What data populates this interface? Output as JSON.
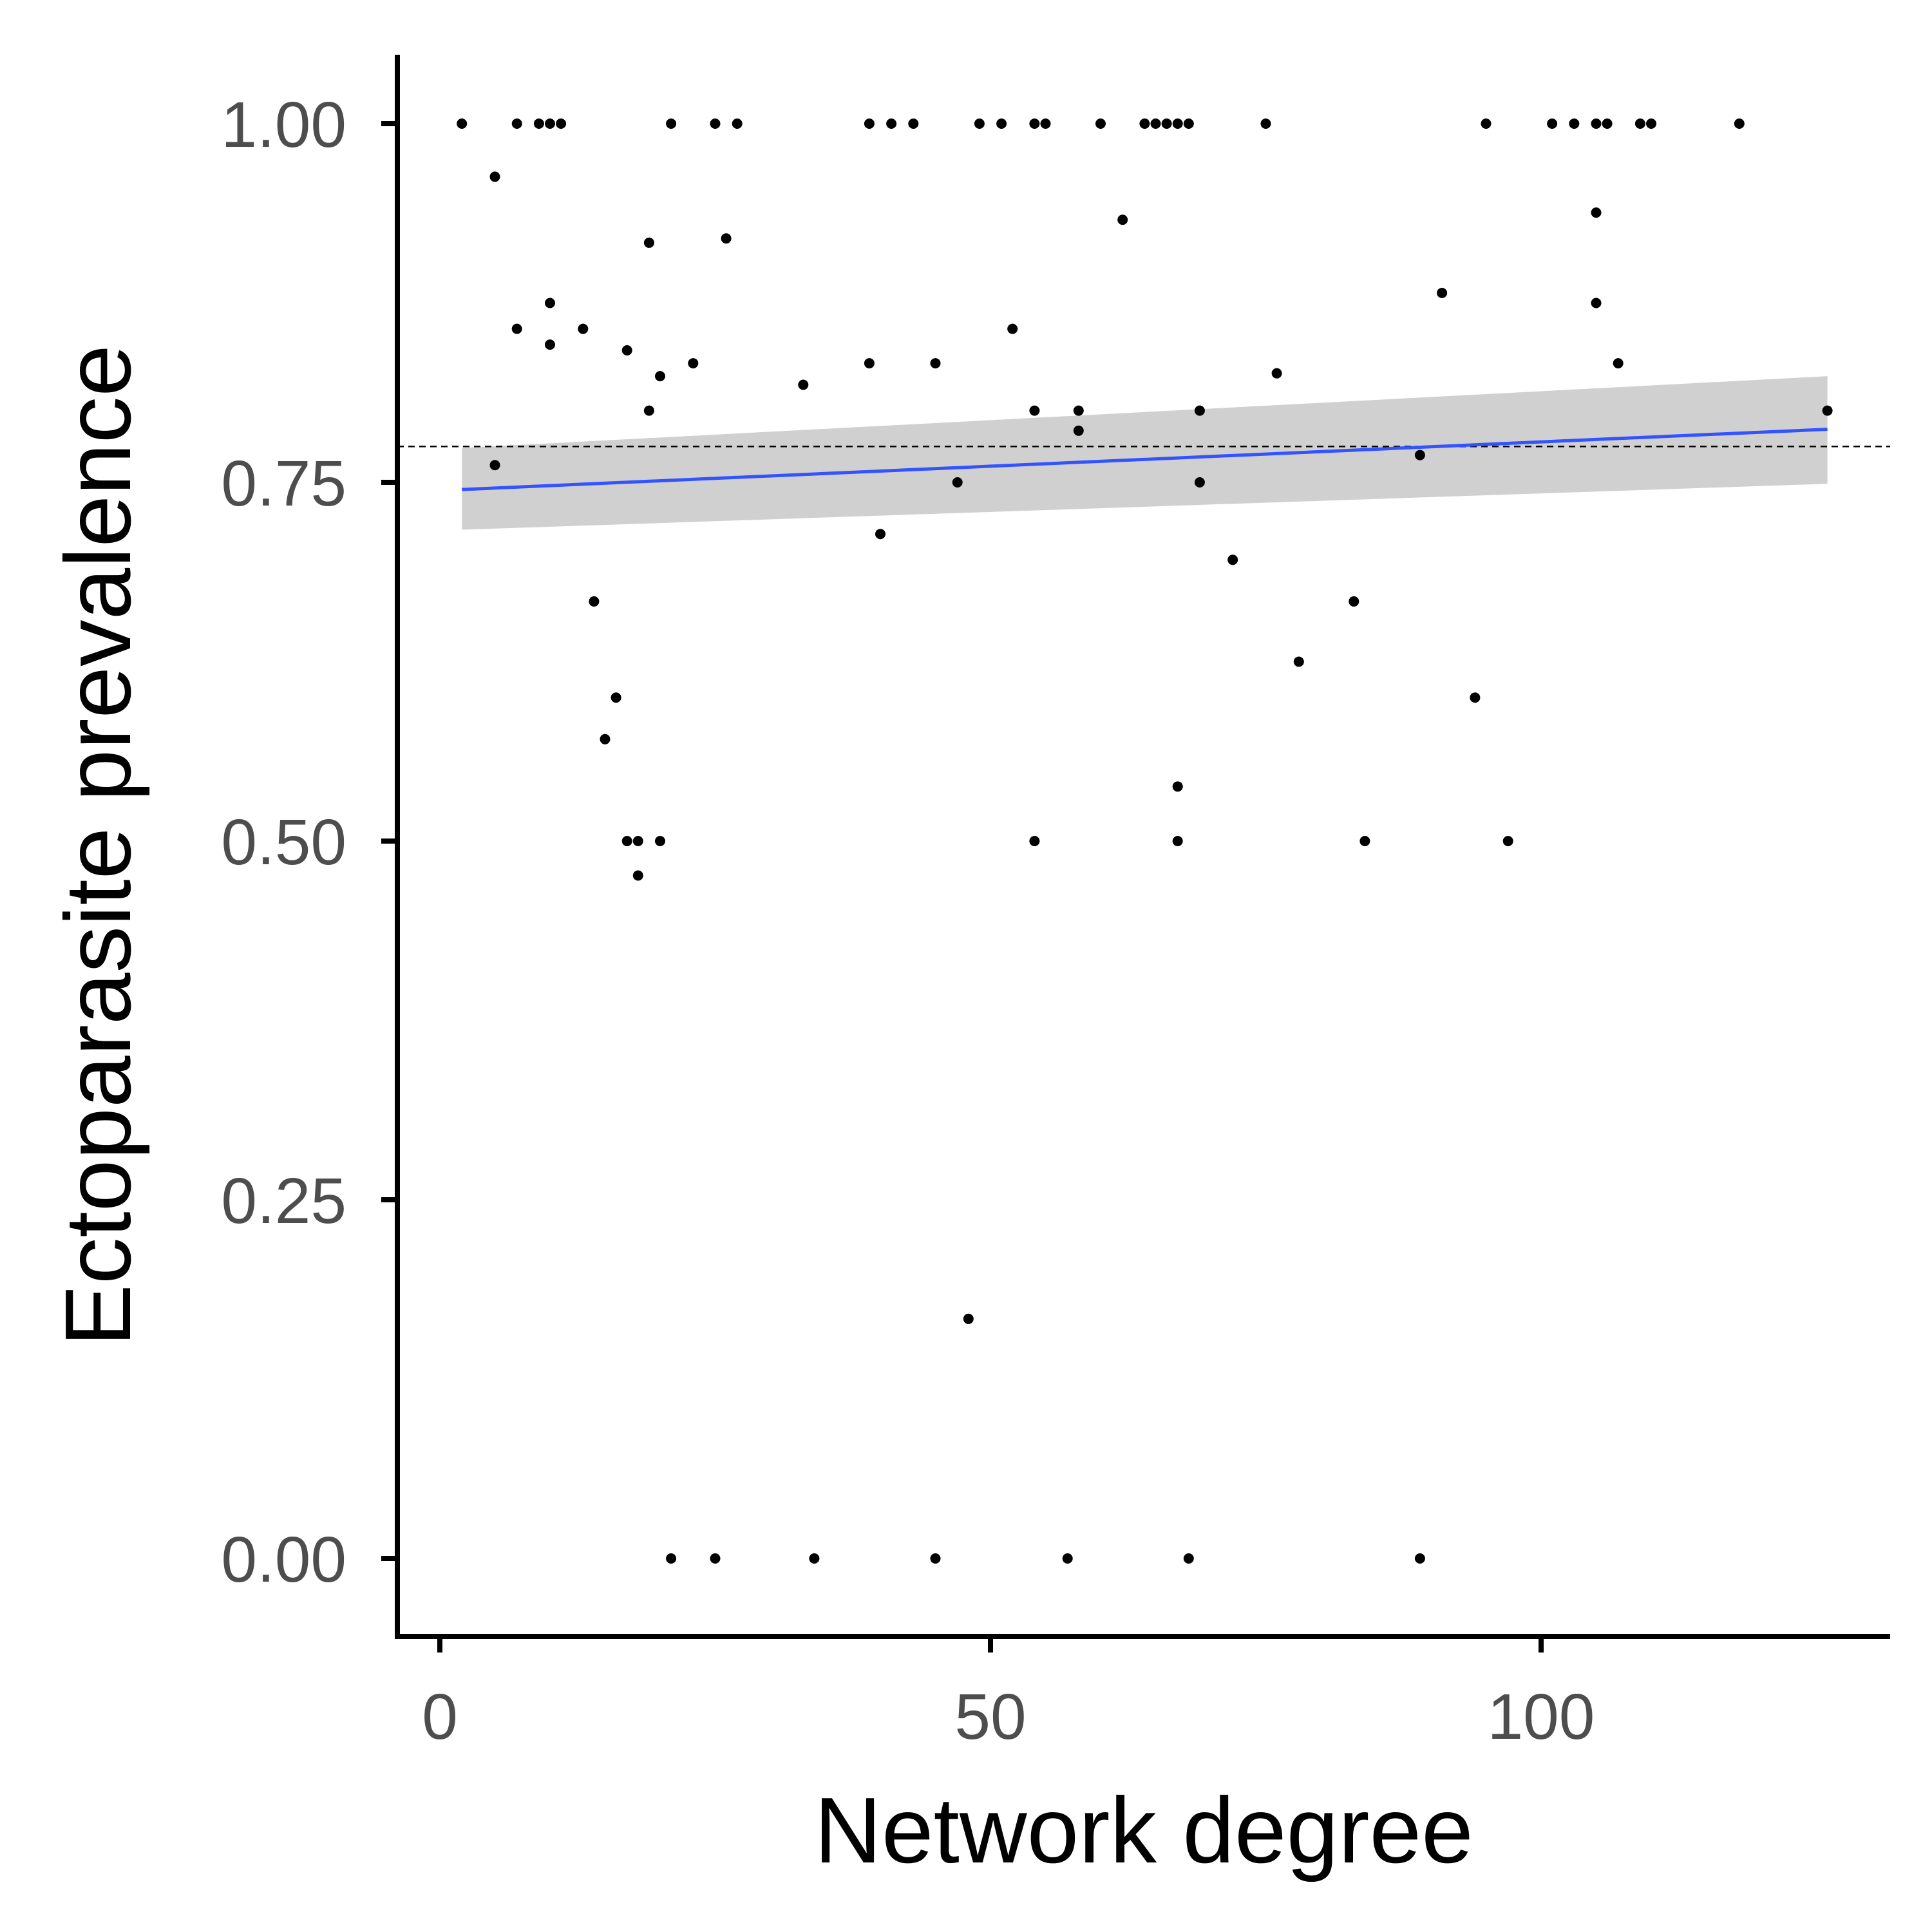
{
  "chart_data": {
    "type": "scatter",
    "title": "",
    "xlabel": "Network degree",
    "ylabel": "Ectoparasite prevalence",
    "xlim": [
      -4,
      132
    ],
    "ylim": [
      -0.05,
      1.05
    ],
    "x_ticks": [
      0,
      50,
      100
    ],
    "x_tick_labels": [
      "0",
      "50",
      "100"
    ],
    "y_ticks": [
      0,
      0.25,
      0.5,
      0.75,
      1.0
    ],
    "y_tick_labels": [
      "0.00",
      "0.25",
      "0.50",
      "0.75",
      "1.00"
    ],
    "grid": false,
    "legend": "none",
    "reference_line": {
      "y": 0.775,
      "style": "dashed"
    },
    "trend": {
      "method": "linear fit with confidence band",
      "x": [
        2,
        126
      ],
      "y": [
        0.745,
        0.787
      ],
      "ci_lower": [
        0.717,
        0.749
      ],
      "ci_upper": [
        0.774,
        0.824
      ]
    },
    "points": [
      {
        "x": 2,
        "y": 1.0
      },
      {
        "x": 7,
        "y": 1.0
      },
      {
        "x": 9,
        "y": 1.0
      },
      {
        "x": 10,
        "y": 1.0
      },
      {
        "x": 11,
        "y": 1.0
      },
      {
        "x": 21,
        "y": 1.0
      },
      {
        "x": 25,
        "y": 1.0
      },
      {
        "x": 27,
        "y": 1.0
      },
      {
        "x": 39,
        "y": 1.0
      },
      {
        "x": 41,
        "y": 1.0
      },
      {
        "x": 43,
        "y": 1.0
      },
      {
        "x": 49,
        "y": 1.0
      },
      {
        "x": 51,
        "y": 1.0
      },
      {
        "x": 54,
        "y": 1.0
      },
      {
        "x": 55,
        "y": 1.0
      },
      {
        "x": 60,
        "y": 1.0
      },
      {
        "x": 64,
        "y": 1.0
      },
      {
        "x": 65,
        "y": 1.0
      },
      {
        "x": 66,
        "y": 1.0
      },
      {
        "x": 67,
        "y": 1.0
      },
      {
        "x": 68,
        "y": 1.0
      },
      {
        "x": 75,
        "y": 1.0
      },
      {
        "x": 95,
        "y": 1.0
      },
      {
        "x": 101,
        "y": 1.0
      },
      {
        "x": 103,
        "y": 1.0
      },
      {
        "x": 105,
        "y": 1.0
      },
      {
        "x": 106,
        "y": 1.0
      },
      {
        "x": 109,
        "y": 1.0
      },
      {
        "x": 110,
        "y": 1.0
      },
      {
        "x": 118,
        "y": 1.0
      },
      {
        "x": 5,
        "y": 0.963
      },
      {
        "x": 62,
        "y": 0.933
      },
      {
        "x": 105,
        "y": 0.938
      },
      {
        "x": 19,
        "y": 0.917
      },
      {
        "x": 26,
        "y": 0.92
      },
      {
        "x": 91,
        "y": 0.882
      },
      {
        "x": 10,
        "y": 0.875
      },
      {
        "x": 105,
        "y": 0.875
      },
      {
        "x": 7,
        "y": 0.857
      },
      {
        "x": 13,
        "y": 0.857
      },
      {
        "x": 52,
        "y": 0.857
      },
      {
        "x": 10,
        "y": 0.846
      },
      {
        "x": 17,
        "y": 0.842
      },
      {
        "x": 23,
        "y": 0.833
      },
      {
        "x": 39,
        "y": 0.833
      },
      {
        "x": 45,
        "y": 0.833
      },
      {
        "x": 107,
        "y": 0.833
      },
      {
        "x": 20,
        "y": 0.824
      },
      {
        "x": 76,
        "y": 0.826
      },
      {
        "x": 33,
        "y": 0.818
      },
      {
        "x": 19,
        "y": 0.8
      },
      {
        "x": 54,
        "y": 0.8
      },
      {
        "x": 58,
        "y": 0.8
      },
      {
        "x": 69,
        "y": 0.8
      },
      {
        "x": 126,
        "y": 0.8
      },
      {
        "x": 58,
        "y": 0.786
      },
      {
        "x": 89,
        "y": 0.769
      },
      {
        "x": 5,
        "y": 0.762
      },
      {
        "x": 47,
        "y": 0.75
      },
      {
        "x": 69,
        "y": 0.75
      },
      {
        "x": 40,
        "y": 0.714
      },
      {
        "x": 72,
        "y": 0.696
      },
      {
        "x": 14,
        "y": 0.667
      },
      {
        "x": 83,
        "y": 0.667
      },
      {
        "x": 78,
        "y": 0.625
      },
      {
        "x": 16,
        "y": 0.6
      },
      {
        "x": 94,
        "y": 0.6
      },
      {
        "x": 15,
        "y": 0.571
      },
      {
        "x": 67,
        "y": 0.538
      },
      {
        "x": 17,
        "y": 0.5
      },
      {
        "x": 18,
        "y": 0.5
      },
      {
        "x": 20,
        "y": 0.5
      },
      {
        "x": 54,
        "y": 0.5
      },
      {
        "x": 67,
        "y": 0.5
      },
      {
        "x": 84,
        "y": 0.5
      },
      {
        "x": 97,
        "y": 0.5
      },
      {
        "x": 18,
        "y": 0.476
      },
      {
        "x": 48,
        "y": 0.167
      },
      {
        "x": 21,
        "y": 0.0
      },
      {
        "x": 25,
        "y": 0.0
      },
      {
        "x": 34,
        "y": 0.0
      },
      {
        "x": 45,
        "y": 0.0
      },
      {
        "x": 57,
        "y": 0.0
      },
      {
        "x": 68,
        "y": 0.0
      },
      {
        "x": 89,
        "y": 0.0
      }
    ]
  },
  "colors": {
    "point": "#000000",
    "trend_line": "#3353ff",
    "ci_band": "#d0d0d0",
    "axis": "#000000",
    "tick_label": "#4d4d4d"
  }
}
